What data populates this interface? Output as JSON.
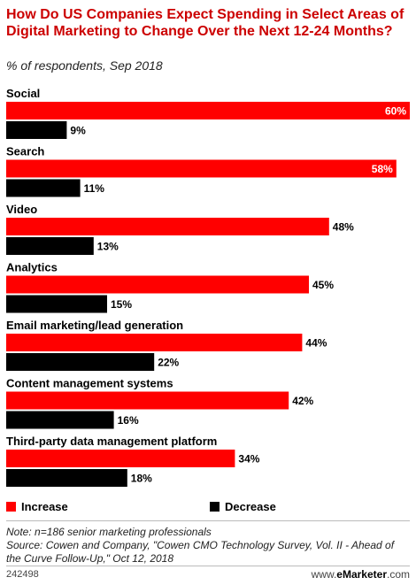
{
  "title": "How Do US Companies Expect Spending in Select Areas of Digital Marketing to Change Over the Next 12-24 Months?",
  "subtitle": "% of respondents, Sep 2018",
  "legend": {
    "increase": "Increase",
    "decrease": "Decrease"
  },
  "colors": {
    "increase": "#ff0000",
    "decrease": "#000000",
    "title": "#cc0000"
  },
  "note": "Note: n=186 senior marketing professionals",
  "source": "Source: Cowen and Company, \"Cowen CMO Technology Survey, Vol. II - Ahead of the Curve Follow-Up,\" Oct 12, 2018",
  "footer": {
    "id": "242498",
    "brand_prefix": "www.",
    "brand_name": "eMarketer",
    "brand_suffix": ".com"
  },
  "chart_data": {
    "type": "bar",
    "orientation": "horizontal",
    "categories": [
      "Social",
      "Search",
      "Video",
      "Analytics",
      "Email marketing/lead generation",
      "Content management systems",
      "Third-party data management platform"
    ],
    "series": [
      {
        "name": "Increase",
        "values": [
          60,
          58,
          48,
          45,
          44,
          42,
          34
        ]
      },
      {
        "name": "Decrease",
        "values": [
          9,
          11,
          13,
          15,
          22,
          16,
          18
        ]
      }
    ],
    "value_suffix": "%",
    "xlim": [
      0,
      60
    ],
    "legend_position": "bottom"
  }
}
